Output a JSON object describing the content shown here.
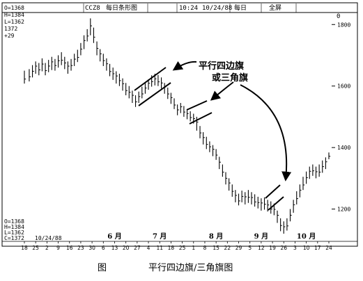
{
  "header": {
    "ticker": "CCZ8",
    "chart_kind": "每日条形图",
    "time": "10:24",
    "date": "10/24/88",
    "period": "每日",
    "mode": "全屏"
  },
  "panel_tl": {
    "open": "O=1368",
    "high": "H=1384",
    "low": "L=1362",
    "close": "1372",
    "change": "+29"
  },
  "panel_bl": {
    "open": "O=1368",
    "high": "H=1384",
    "low": "L=1362",
    "close": "C=1372",
    "date": "10/24/88"
  },
  "corner_mark": "0",
  "annotation": {
    "line1": "平行四边旗",
    "line2": "或三角旗"
  },
  "caption": {
    "label": "图",
    "title": "平行四边旗/三角旗图"
  },
  "chart_data": {
    "type": "bar",
    "subtype": "ohlc",
    "y_ticks": [
      1800,
      1600,
      1400,
      1200
    ],
    "ylim": [
      1095,
      1830
    ],
    "months": [
      "6 月",
      "7 月",
      "8 月",
      "9 月",
      "10 月"
    ],
    "x_ticks": [
      "18",
      "25",
      "2",
      "9",
      "16",
      "23",
      "30",
      "6",
      "13",
      "20",
      "27",
      "4",
      "11",
      "18",
      "25",
      "1",
      "8",
      "15",
      "22",
      "29",
      "5",
      "12",
      "19",
      "26",
      "3",
      "10",
      "17",
      "24"
    ],
    "x_tick_positions": [
      0,
      7,
      14,
      21,
      28,
      35,
      42,
      49,
      56,
      63,
      70,
      77,
      84,
      91,
      98,
      105,
      112,
      119,
      126,
      133,
      140,
      147,
      154,
      161,
      168,
      175,
      182,
      189
    ],
    "month_positions": [
      56,
      84,
      119,
      147,
      175
    ],
    "bars": [
      [
        0,
        1650,
        1608
      ],
      [
        3,
        1655,
        1615
      ],
      [
        5,
        1668,
        1628
      ],
      [
        7,
        1680,
        1640
      ],
      [
        9,
        1675,
        1635
      ],
      [
        11,
        1690,
        1648
      ],
      [
        13,
        1675,
        1635
      ],
      [
        15,
        1685,
        1645
      ],
      [
        17,
        1695,
        1652
      ],
      [
        19,
        1688,
        1650
      ],
      [
        21,
        1700,
        1660
      ],
      [
        23,
        1710,
        1668
      ],
      [
        25,
        1695,
        1655
      ],
      [
        27,
        1680,
        1640
      ],
      [
        29,
        1688,
        1650
      ],
      [
        31,
        1705,
        1665
      ],
      [
        33,
        1718,
        1678
      ],
      [
        35,
        1740,
        1700
      ],
      [
        37,
        1765,
        1720
      ],
      [
        39,
        1785,
        1745
      ],
      [
        41,
        1820,
        1765
      ],
      [
        43,
        1790,
        1740
      ],
      [
        45,
        1745,
        1700
      ],
      [
        47,
        1720,
        1680
      ],
      [
        49,
        1705,
        1665
      ],
      [
        51,
        1690,
        1650
      ],
      [
        53,
        1672,
        1632
      ],
      [
        55,
        1660,
        1620
      ],
      [
        57,
        1648,
        1608
      ],
      [
        59,
        1640,
        1600
      ],
      [
        61,
        1625,
        1585
      ],
      [
        63,
        1610,
        1570
      ],
      [
        65,
        1600,
        1560
      ],
      [
        67,
        1585,
        1545
      ],
      [
        69,
        1570,
        1532
      ],
      [
        71,
        1582,
        1545
      ],
      [
        73,
        1598,
        1560
      ],
      [
        75,
        1612,
        1575
      ],
      [
        77,
        1622,
        1588
      ],
      [
        79,
        1635,
        1598
      ],
      [
        81,
        1640,
        1602
      ],
      [
        83,
        1636,
        1600
      ],
      [
        85,
        1628,
        1592
      ],
      [
        87,
        1610,
        1575
      ],
      [
        89,
        1595,
        1558
      ],
      [
        91,
        1578,
        1542
      ],
      [
        93,
        1560,
        1525
      ],
      [
        95,
        1540,
        1505
      ],
      [
        97,
        1545,
        1512
      ],
      [
        99,
        1535,
        1500
      ],
      [
        101,
        1525,
        1492
      ],
      [
        103,
        1518,
        1485
      ],
      [
        105,
        1510,
        1478
      ],
      [
        107,
        1500,
        1455
      ],
      [
        109,
        1470,
        1430
      ],
      [
        111,
        1450,
        1410
      ],
      [
        113,
        1435,
        1395
      ],
      [
        115,
        1420,
        1385
      ],
      [
        117,
        1408,
        1372
      ],
      [
        119,
        1395,
        1360
      ],
      [
        121,
        1370,
        1330
      ],
      [
        123,
        1345,
        1305
      ],
      [
        125,
        1320,
        1280
      ],
      [
        127,
        1300,
        1260
      ],
      [
        129,
        1280,
        1240
      ],
      [
        131,
        1262,
        1222
      ],
      [
        133,
        1250,
        1212
      ],
      [
        135,
        1260,
        1222
      ],
      [
        137,
        1255,
        1215
      ],
      [
        139,
        1262,
        1220
      ],
      [
        141,
        1255,
        1215
      ],
      [
        143,
        1248,
        1208
      ],
      [
        145,
        1240,
        1202
      ],
      [
        147,
        1235,
        1195
      ],
      [
        149,
        1238,
        1198
      ],
      [
        151,
        1230,
        1192
      ],
      [
        153,
        1225,
        1185
      ],
      [
        155,
        1218,
        1180
      ],
      [
        157,
        1195,
        1155
      ],
      [
        159,
        1170,
        1128
      ],
      [
        161,
        1160,
        1120
      ],
      [
        163,
        1170,
        1130
      ],
      [
        165,
        1200,
        1160
      ],
      [
        167,
        1230,
        1188
      ],
      [
        169,
        1258,
        1215
      ],
      [
        171,
        1280,
        1238
      ],
      [
        173,
        1305,
        1262
      ],
      [
        175,
        1322,
        1282
      ],
      [
        177,
        1338,
        1298
      ],
      [
        179,
        1345,
        1308
      ],
      [
        181,
        1338,
        1300
      ],
      [
        183,
        1345,
        1305
      ],
      [
        185,
        1358,
        1318
      ],
      [
        187,
        1368,
        1330
      ],
      [
        189,
        1384,
        1362
      ]
    ]
  }
}
